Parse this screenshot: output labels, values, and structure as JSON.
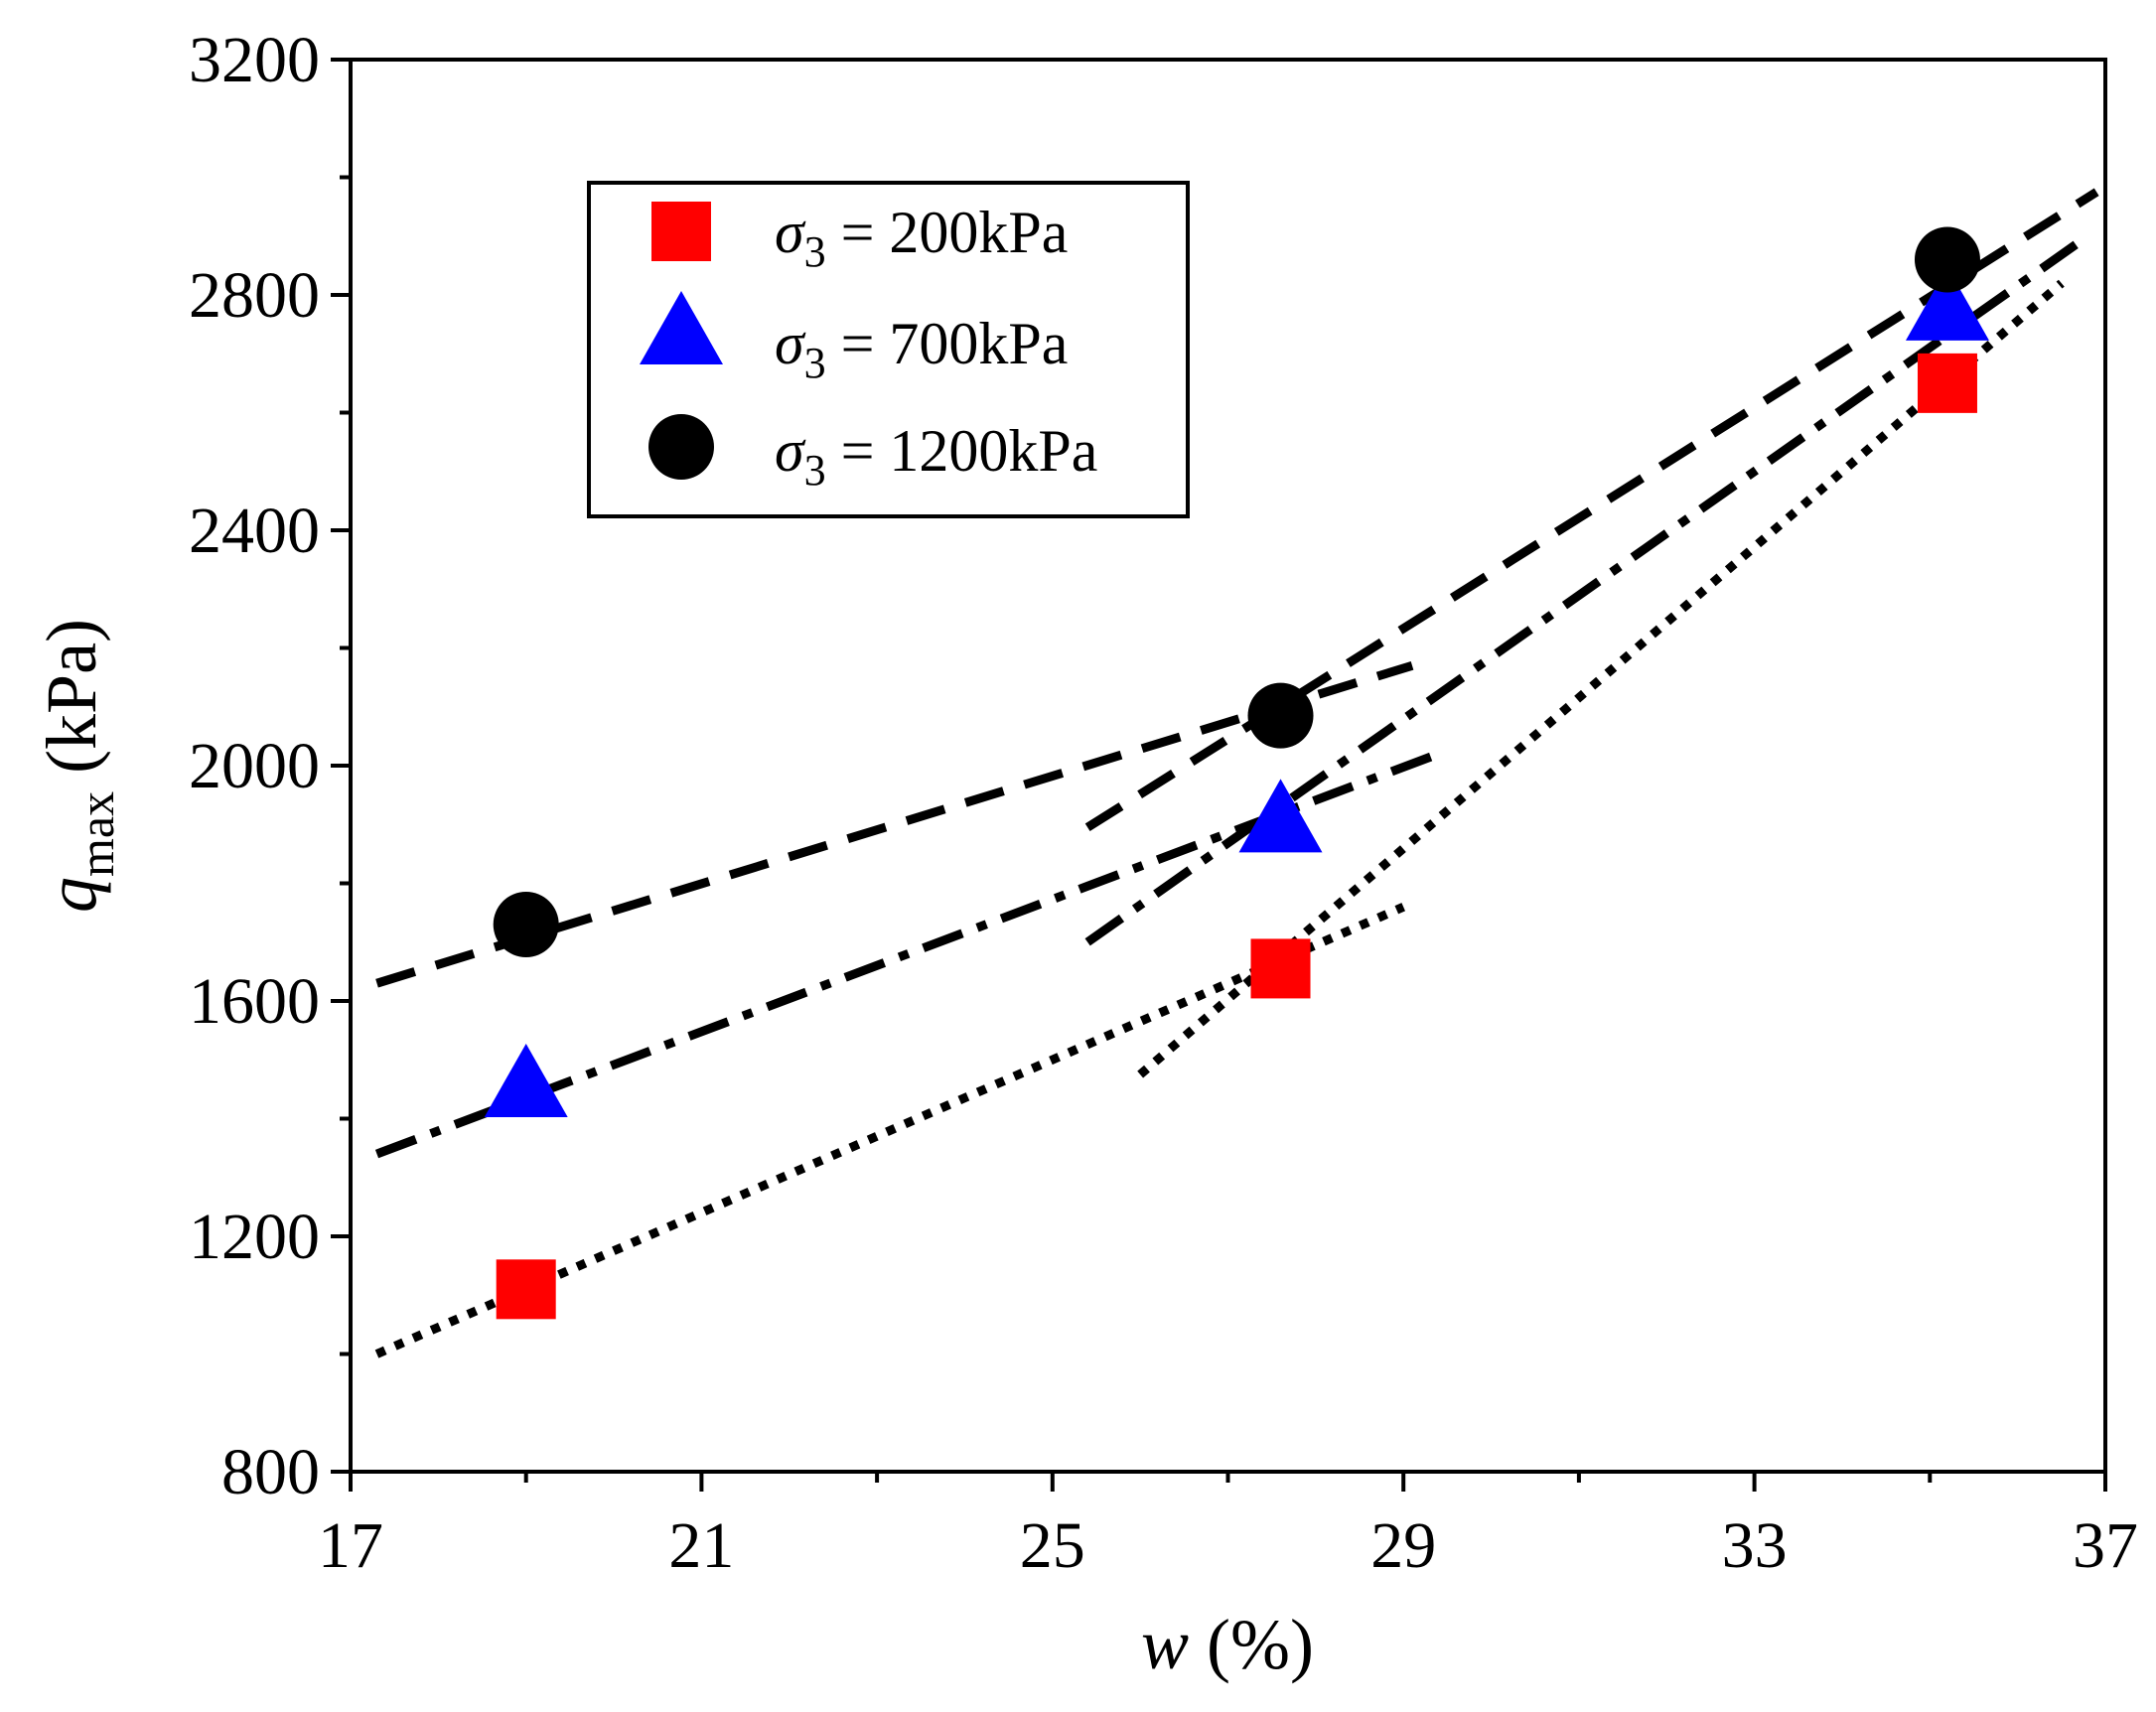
{
  "chart_data": {
    "type": "scatter",
    "xlabel": {
      "var": "w",
      "unit": " (%)"
    },
    "ylabel": {
      "var": "q",
      "sub": "max",
      "unit": " (kPa)"
    },
    "xlim": [
      17,
      37
    ],
    "ylim": [
      800,
      3200
    ],
    "xticks": [
      17,
      21,
      25,
      29,
      33,
      37
    ],
    "yticks": [
      800,
      1200,
      1600,
      2000,
      2400,
      2800,
      3200
    ],
    "x_minor_ticks": [
      19,
      23,
      27,
      31,
      35
    ],
    "y_minor_ticks": [
      1000,
      1400,
      1800,
      2200,
      2600,
      3000
    ],
    "grid": false,
    "legend_position": "top-left",
    "series": [
      {
        "name": "σ3 = 200kPa",
        "label": {
          "sym": "σ",
          "sub": "3",
          "rest": " = 200kPa"
        },
        "marker": "square",
        "color": "#ff0000",
        "x": [
          19,
          27.6,
          35.2
        ],
        "y": [
          1110,
          1655,
          2650
        ],
        "fits": [
          {
            "style": "dotted",
            "x": [
              17.3,
              29
            ],
            "y": [
              1000,
              1760
            ]
          },
          {
            "style": "dotted",
            "x": [
              26,
              36.5
            ],
            "y": [
              1475,
              2820
            ]
          }
        ]
      },
      {
        "name": "σ3 = 700kPa",
        "label": {
          "sym": "σ",
          "sub": "3",
          "rest": " = 700kPa"
        },
        "marker": "triangle",
        "color": "#0000ff",
        "x": [
          19,
          27.6,
          35.2
        ],
        "y": [
          1460,
          1910,
          2780
        ],
        "fits": [
          {
            "style": "dashdot",
            "x": [
              17.3,
              29.4
            ],
            "y": [
              1340,
              2020
            ]
          },
          {
            "style": "dashdot",
            "x": [
              25.4,
              36.8
            ],
            "y": [
              1700,
              2900
            ]
          }
        ]
      },
      {
        "name": "σ3 = 1200kPa",
        "label": {
          "sym": "σ",
          "sub": "3",
          "rest": " = 1200kPa"
        },
        "marker": "circle",
        "color": "#000000",
        "x": [
          19,
          27.6,
          35.2
        ],
        "y": [
          1730,
          2085,
          2860
        ],
        "fits": [
          {
            "style": "dashed",
            "x": [
              17.3,
              29.1
            ],
            "y": [
              1630,
              2170
            ]
          },
          {
            "style": "dashed",
            "x": [
              25.4,
              36.9
            ],
            "y": [
              1895,
              2975
            ]
          }
        ]
      }
    ]
  }
}
